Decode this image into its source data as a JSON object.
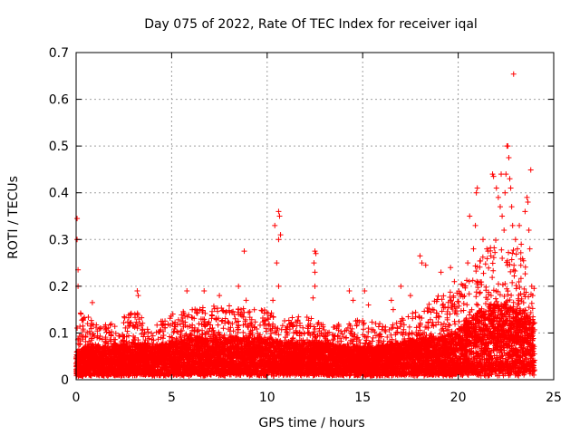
{
  "chart_data": {
    "type": "scatter",
    "title": "Day 075 of 2022, Rate Of TEC Index for receiver iqal",
    "xlabel": "GPS time / hours",
    "ylabel": "ROTI / TECUs",
    "xlim": [
      0,
      25
    ],
    "ylim": [
      0,
      0.7
    ],
    "xticks": [
      0,
      5,
      10,
      15,
      20,
      25
    ],
    "yticks": [
      0,
      0.1,
      0.2,
      0.3,
      0.4,
      0.5,
      0.6,
      0.7
    ],
    "xtick_labels": [
      "0",
      "5",
      "10",
      "15",
      "20",
      "25"
    ],
    "ytick_labels": [
      "0",
      "0.1",
      "0.2",
      "0.3",
      "0.4",
      "0.5",
      "0.6",
      "0.7"
    ],
    "grid": true,
    "marker": "+",
    "series_color": "#ff0000",
    "envelope": {
      "hours": [
        0,
        0.5,
        1,
        2,
        3,
        4,
        5,
        6,
        7,
        8,
        9,
        10,
        11,
        12,
        13,
        14,
        15,
        16,
        17,
        18,
        19,
        20,
        20.5,
        21,
        21.5,
        22,
        22.5,
        23,
        23.5,
        24
      ],
      "baseline": [
        0.03,
        0.04,
        0.04,
        0.04,
        0.045,
        0.04,
        0.045,
        0.05,
        0.05,
        0.05,
        0.05,
        0.05,
        0.045,
        0.045,
        0.045,
        0.04,
        0.04,
        0.04,
        0.045,
        0.05,
        0.05,
        0.06,
        0.07,
        0.08,
        0.09,
        0.09,
        0.09,
        0.08,
        0.08,
        0.07
      ],
      "typical_max": [
        0.15,
        0.14,
        0.12,
        0.12,
        0.15,
        0.12,
        0.14,
        0.15,
        0.16,
        0.16,
        0.15,
        0.15,
        0.13,
        0.14,
        0.12,
        0.12,
        0.13,
        0.12,
        0.13,
        0.16,
        0.18,
        0.2,
        0.22,
        0.25,
        0.28,
        0.3,
        0.28,
        0.3,
        0.25,
        0.2
      ]
    },
    "notable_points": [
      {
        "x": 0.05,
        "y": 0.345
      },
      {
        "x": 0.05,
        "y": 0.3
      },
      {
        "x": 0.1,
        "y": 0.235
      },
      {
        "x": 0.1,
        "y": 0.2
      },
      {
        "x": 0.85,
        "y": 0.165
      },
      {
        "x": 3.2,
        "y": 0.19
      },
      {
        "x": 3.25,
        "y": 0.18
      },
      {
        "x": 5.8,
        "y": 0.19
      },
      {
        "x": 6.7,
        "y": 0.19
      },
      {
        "x": 7.5,
        "y": 0.18
      },
      {
        "x": 8.8,
        "y": 0.275
      },
      {
        "x": 8.5,
        "y": 0.2
      },
      {
        "x": 8.9,
        "y": 0.17
      },
      {
        "x": 10.4,
        "y": 0.33
      },
      {
        "x": 10.6,
        "y": 0.36
      },
      {
        "x": 10.65,
        "y": 0.35
      },
      {
        "x": 10.7,
        "y": 0.31
      },
      {
        "x": 10.6,
        "y": 0.3
      },
      {
        "x": 10.5,
        "y": 0.25
      },
      {
        "x": 10.6,
        "y": 0.2
      },
      {
        "x": 10.3,
        "y": 0.17
      },
      {
        "x": 12.5,
        "y": 0.275
      },
      {
        "x": 12.55,
        "y": 0.27
      },
      {
        "x": 12.45,
        "y": 0.25
      },
      {
        "x": 12.5,
        "y": 0.23
      },
      {
        "x": 12.5,
        "y": 0.2
      },
      {
        "x": 12.4,
        "y": 0.175
      },
      {
        "x": 14.3,
        "y": 0.19
      },
      {
        "x": 14.5,
        "y": 0.17
      },
      {
        "x": 15.1,
        "y": 0.19
      },
      {
        "x": 15.3,
        "y": 0.16
      },
      {
        "x": 16.5,
        "y": 0.17
      },
      {
        "x": 16.6,
        "y": 0.15
      },
      {
        "x": 17.0,
        "y": 0.2
      },
      {
        "x": 17.5,
        "y": 0.18
      },
      {
        "x": 18.0,
        "y": 0.265
      },
      {
        "x": 18.1,
        "y": 0.25
      },
      {
        "x": 18.3,
        "y": 0.245
      },
      {
        "x": 19.1,
        "y": 0.23
      },
      {
        "x": 19.6,
        "y": 0.24
      },
      {
        "x": 19.8,
        "y": 0.21
      },
      {
        "x": 20.5,
        "y": 0.25
      },
      {
        "x": 20.8,
        "y": 0.28
      },
      {
        "x": 20.6,
        "y": 0.35
      },
      {
        "x": 20.9,
        "y": 0.33
      },
      {
        "x": 21.0,
        "y": 0.41
      },
      {
        "x": 20.95,
        "y": 0.4
      },
      {
        "x": 21.3,
        "y": 0.3
      },
      {
        "x": 21.5,
        "y": 0.28
      },
      {
        "x": 21.8,
        "y": 0.44
      },
      {
        "x": 21.85,
        "y": 0.435
      },
      {
        "x": 22.0,
        "y": 0.41
      },
      {
        "x": 22.1,
        "y": 0.39
      },
      {
        "x": 22.2,
        "y": 0.37
      },
      {
        "x": 22.25,
        "y": 0.44
      },
      {
        "x": 22.3,
        "y": 0.35
      },
      {
        "x": 22.4,
        "y": 0.32
      },
      {
        "x": 22.45,
        "y": 0.4
      },
      {
        "x": 22.5,
        "y": 0.44
      },
      {
        "x": 22.55,
        "y": 0.5
      },
      {
        "x": 22.6,
        "y": 0.5
      },
      {
        "x": 22.65,
        "y": 0.475
      },
      {
        "x": 22.7,
        "y": 0.43
      },
      {
        "x": 22.75,
        "y": 0.41
      },
      {
        "x": 22.8,
        "y": 0.37
      },
      {
        "x": 22.85,
        "y": 0.33
      },
      {
        "x": 22.9,
        "y": 0.654
      },
      {
        "x": 23.0,
        "y": 0.3
      },
      {
        "x": 23.1,
        "y": 0.28
      },
      {
        "x": 23.2,
        "y": 0.33
      },
      {
        "x": 23.3,
        "y": 0.29
      },
      {
        "x": 23.5,
        "y": 0.36
      },
      {
        "x": 23.6,
        "y": 0.39
      },
      {
        "x": 23.65,
        "y": 0.38
      },
      {
        "x": 23.7,
        "y": 0.32
      },
      {
        "x": 23.75,
        "y": 0.28
      },
      {
        "x": 23.8,
        "y": 0.449
      },
      {
        "x": 23.85,
        "y": 0.2
      },
      {
        "x": 23.9,
        "y": 0.18
      }
    ]
  }
}
